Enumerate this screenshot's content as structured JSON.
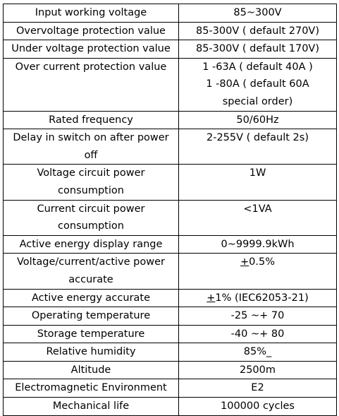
{
  "table": {
    "rows": [
      {
        "param": [
          "Input working voltage"
        ],
        "value": [
          "85~300V"
        ]
      },
      {
        "param": [
          "Overvoltage protection value"
        ],
        "value": [
          "85-300V ( default 270V)"
        ]
      },
      {
        "param": [
          "Under voltage  protection  value"
        ],
        "value": [
          "85-300V ( default 170V)"
        ]
      },
      {
        "param": [
          "Over current  protection  value"
        ],
        "value": [
          "1 -63A ( default 40A )",
          "1 -80A ( default 60A",
          "special order)"
        ]
      },
      {
        "param": [
          "Rated frequency"
        ],
        "value": [
          "50/60Hz"
        ]
      },
      {
        "param": [
          "Delay in switch on after power",
          "off"
        ],
        "value": [
          "2-255V ( default 2s)"
        ]
      },
      {
        "param": [
          "Voltage circuit power",
          "consumption"
        ],
        "value": [
          "1W"
        ]
      },
      {
        "param": [
          "Current circuit power",
          "consumption"
        ],
        "value": [
          "<1VA"
        ]
      },
      {
        "param": [
          "Active energy display range"
        ],
        "value": [
          "0~9999.9kWh"
        ]
      },
      {
        "param": [
          "Voltage/current/active power",
          "accurate"
        ],
        "value": [
          "±0.5%"
        ]
      },
      {
        "param": [
          "Active energy accurate"
        ],
        "value": [
          "±1%  (IEC62053-21)"
        ]
      },
      {
        "param": [
          "Operating temperature"
        ],
        "value": [
          "-25 ~+ 70"
        ]
      },
      {
        "param": [
          "Storage  temperature"
        ],
        "value": [
          "-40 ~+ 80"
        ]
      },
      {
        "param": [
          "Relative humidity"
        ],
        "value": [
          "85%_"
        ]
      },
      {
        "param": [
          "Altitude"
        ],
        "value": [
          "2500m"
        ]
      },
      {
        "param": [
          "Electromagnetic Environment"
        ],
        "value": [
          "E2"
        ]
      },
      {
        "param": [
          "Mechanical life"
        ],
        "value": [
          "100000  cycles"
        ]
      }
    ]
  }
}
